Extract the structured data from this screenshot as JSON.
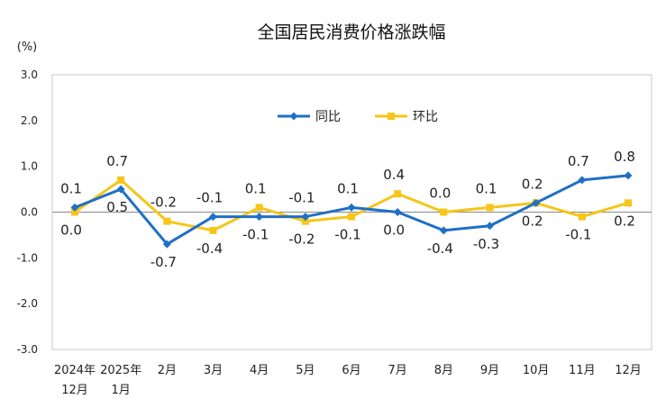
{
  "chart_data": {
    "type": "line",
    "title": "全国居民消费价格涨跌幅",
    "ylabel": "(%)",
    "xlabel": "",
    "ylim": [
      -3.0,
      3.0
    ],
    "yticks": [
      "3.0",
      "2.0",
      "1.0",
      "0.0",
      "-1.0",
      "-2.0",
      "-3.0"
    ],
    "categories": [
      [
        "2024年",
        "12月"
      ],
      [
        "2025年",
        "1月"
      ],
      [
        "2月"
      ],
      [
        "3月"
      ],
      [
        "4月"
      ],
      [
        "5月"
      ],
      [
        "6月"
      ],
      [
        "7月"
      ],
      [
        "8月"
      ],
      [
        "9月"
      ],
      [
        "10月"
      ],
      [
        "11月"
      ],
      [
        "12月"
      ]
    ],
    "series": [
      {
        "name": "同比",
        "color": "#1f6fc5",
        "values": [
          0.1,
          0.5,
          -0.7,
          -0.1,
          -0.1,
          -0.1,
          0.1,
          0.0,
          -0.4,
          -0.3,
          0.2,
          0.7,
          0.8
        ],
        "labels": [
          "0.1",
          "0.5",
          "-0.7",
          "-0.1",
          "-0.1",
          "-0.1",
          "0.1",
          "0.0",
          "-0.4",
          "-0.3",
          "0.2",
          "0.7",
          "0.8"
        ],
        "label_pos": [
          "above",
          "below",
          "below",
          "above",
          "below",
          "above",
          "above",
          "below",
          "below",
          "below",
          "above",
          "above",
          "above"
        ]
      },
      {
        "name": "环比",
        "color": "#f5c518",
        "values": [
          0.0,
          0.7,
          -0.2,
          -0.4,
          0.1,
          -0.2,
          -0.1,
          0.4,
          0.0,
          0.1,
          0.2,
          -0.1,
          0.2
        ],
        "labels": [
          "0.0",
          "0.7",
          "-0.2",
          "-0.4",
          "0.1",
          "-0.2",
          "-0.1",
          "0.4",
          "0.0",
          "0.1",
          "0.2",
          "-0.1",
          "0.2"
        ],
        "label_pos": [
          "below",
          "above",
          "above",
          "below",
          "above",
          "below",
          "below",
          "above",
          "above",
          "above",
          "below",
          "below",
          "below"
        ]
      }
    ],
    "legend": {
      "placement": "top-center"
    },
    "grid": false
  }
}
